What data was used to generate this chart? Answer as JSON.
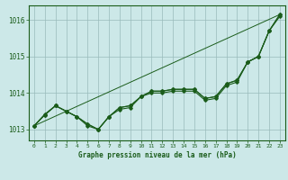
{
  "title": "Graphe pression niveau de la mer (hPa)",
  "bg_color": "#cce8e8",
  "grid_color": "#99bbbb",
  "line_color": "#1a5c1a",
  "text_color": "#1a5c1a",
  "xlim": [
    -0.5,
    23.5
  ],
  "ylim": [
    1012.7,
    1016.4
  ],
  "yticks": [
    1013,
    1014,
    1015,
    1016
  ],
  "xticks": [
    0,
    1,
    2,
    3,
    4,
    5,
    6,
    7,
    8,
    9,
    10,
    11,
    12,
    13,
    14,
    15,
    16,
    17,
    18,
    19,
    20,
    21,
    22,
    23
  ],
  "series": [
    {
      "x": [
        0,
        1,
        2,
        3,
        4,
        5,
        6,
        7,
        8,
        9,
        10,
        11,
        12,
        13,
        14,
        15,
        16,
        17,
        18,
        19,
        20,
        21,
        22,
        23
      ],
      "y": [
        1013.1,
        1013.4,
        1013.65,
        1013.5,
        1013.35,
        1013.1,
        1013.0,
        1013.35,
        1013.55,
        1013.6,
        1013.9,
        1014.0,
        1014.0,
        1014.05,
        1014.05,
        1014.05,
        1013.8,
        1013.85,
        1014.2,
        1014.3,
        1014.85,
        1015.0,
        1015.7,
        1016.1
      ],
      "no_marker": false
    },
    {
      "x": [
        0,
        1,
        2,
        3,
        4,
        5,
        6,
        7,
        8,
        9,
        10,
        11,
        12,
        13,
        14,
        15,
        16,
        17,
        18,
        19,
        20,
        21,
        22,
        23
      ],
      "y": [
        1013.1,
        1013.4,
        1013.65,
        1013.5,
        1013.35,
        1013.15,
        1013.0,
        1013.35,
        1013.6,
        1013.65,
        1013.9,
        1014.05,
        1014.05,
        1014.1,
        1014.1,
        1014.1,
        1013.85,
        1013.9,
        1014.25,
        1014.35,
        1014.85,
        1015.0,
        1015.7,
        1016.15
      ],
      "no_marker": false
    },
    {
      "x": [
        0,
        1,
        2,
        3,
        4,
        5,
        6,
        7,
        8,
        9,
        10,
        11,
        12,
        13,
        14,
        15,
        16,
        17,
        18,
        19,
        20,
        21,
        22,
        23
      ],
      "y": [
        1013.1,
        1013.42,
        1013.65,
        1013.5,
        1013.35,
        1013.15,
        1013.0,
        1013.35,
        1013.6,
        1013.65,
        1013.9,
        1014.05,
        1014.05,
        1014.1,
        1014.1,
        1014.1,
        1013.85,
        1013.9,
        1014.25,
        1014.35,
        1014.85,
        1015.0,
        1015.7,
        1016.15
      ],
      "no_marker": false
    },
    {
      "x": [
        0,
        23
      ],
      "y": [
        1013.1,
        1016.15
      ],
      "no_marker": true
    }
  ]
}
